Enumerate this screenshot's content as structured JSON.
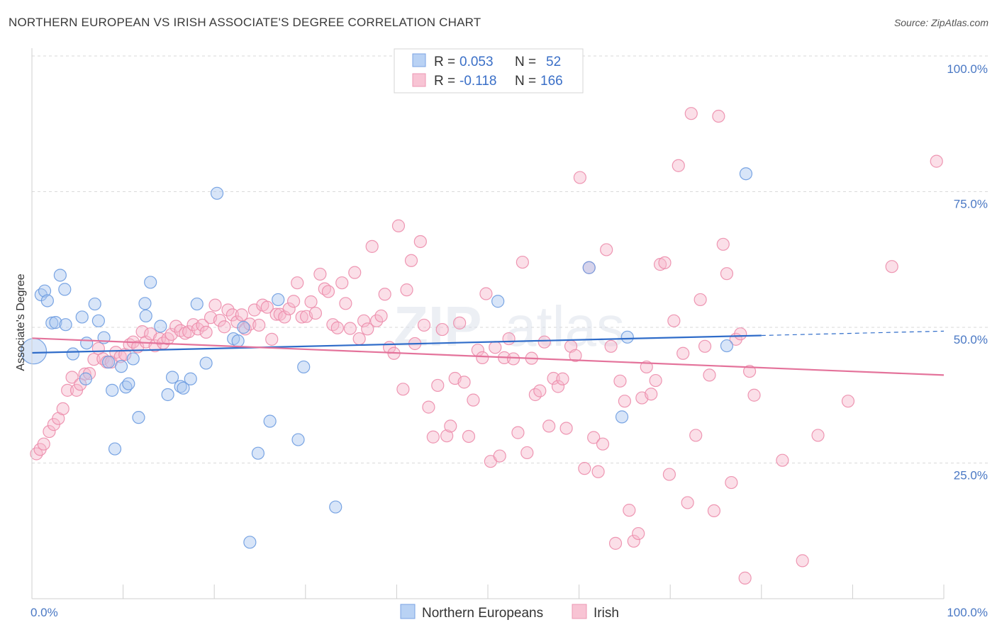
{
  "title": "NORTHERN EUROPEAN VS IRISH ASSOCIATE'S DEGREE CORRELATION CHART",
  "source": "Source: ZipAtlas.com",
  "watermark": {
    "zip": "ZIP",
    "atlas": "atlas"
  },
  "colors": {
    "blue_fill": "#a9c6f0",
    "blue_stroke": "#6b9be0",
    "blue_line": "#2f6cc9",
    "pink_fill": "#f6b7cb",
    "pink_stroke": "#ec8cab",
    "pink_line": "#e4739b",
    "tick_label": "#4a78c4",
    "grid": "#d9d9d9"
  },
  "legend": {
    "rows": [
      {
        "r_label": "R = ",
        "r_value": "0.053",
        "n_label": "N = ",
        "n_value": "52"
      },
      {
        "r_label": "R = ",
        "r_value": "-0.118",
        "n_label": "N = ",
        "n_value": "166"
      }
    ]
  },
  "chart_data": {
    "type": "scatter",
    "title": "NORTHERN EUROPEAN VS IRISH ASSOCIATE'S DEGREE CORRELATION CHART",
    "xlabel": "",
    "ylabel": "Associate's Degree",
    "xlim": [
      0,
      100
    ],
    "ylim": [
      0,
      100
    ],
    "x_tick_labels": [
      "0.0%",
      "100.0%"
    ],
    "y_ticks": [
      25,
      50,
      75,
      100
    ],
    "y_tick_labels": [
      "25.0%",
      "50.0%",
      "75.0%",
      "100.0%"
    ],
    "grid": true,
    "legend_position": "top-center",
    "series": [
      {
        "name": "Northern Europeans",
        "color": "#a9c6f0",
        "trend": {
          "x0": 0,
          "y0": 45.3,
          "x1": 80,
          "y1": 48.5,
          "dashed_to_x": 100,
          "dashed_to_y": 49.3
        },
        "points": [
          [
            0.2,
            45.6
          ],
          [
            1,
            56
          ],
          [
            1.4,
            56.7
          ],
          [
            1.7,
            54.9
          ],
          [
            2.2,
            50.8
          ],
          [
            2.6,
            50.9
          ],
          [
            3.1,
            59.6
          ],
          [
            3.6,
            57
          ],
          [
            3.7,
            50.5
          ],
          [
            4.5,
            45.1
          ],
          [
            5.5,
            51.9
          ],
          [
            5.9,
            40.5
          ],
          [
            6,
            47.1
          ],
          [
            6.9,
            54.3
          ],
          [
            7.3,
            51.2
          ],
          [
            7.9,
            48.1
          ],
          [
            8.4,
            43.6
          ],
          [
            8.8,
            38.4
          ],
          [
            9.1,
            27.6
          ],
          [
            9.8,
            42.8
          ],
          [
            10.3,
            39
          ],
          [
            10.6,
            39.6
          ],
          [
            11.1,
            44.2
          ],
          [
            11.7,
            33.4
          ],
          [
            12.4,
            54.4
          ],
          [
            12.5,
            52.1
          ],
          [
            13,
            58.3
          ],
          [
            14.1,
            50.2
          ],
          [
            14.9,
            37.6
          ],
          [
            15.4,
            40.8
          ],
          [
            16.3,
            39.1
          ],
          [
            16.6,
            38.8
          ],
          [
            17.4,
            40.5
          ],
          [
            18.1,
            54.3
          ],
          [
            19.1,
            43.4
          ],
          [
            20.3,
            74.7
          ],
          [
            22.1,
            47.9
          ],
          [
            22.6,
            47.5
          ],
          [
            23.2,
            50
          ],
          [
            23.9,
            10.4
          ],
          [
            24.8,
            26.8
          ],
          [
            26.1,
            32.7
          ],
          [
            27,
            55.1
          ],
          [
            29.2,
            29.3
          ],
          [
            29.8,
            42.7
          ],
          [
            33.3,
            16.9
          ],
          [
            51.1,
            54.8
          ],
          [
            61.1,
            61
          ],
          [
            64.7,
            33.5
          ],
          [
            65.3,
            48.2
          ],
          [
            78.3,
            78.3
          ],
          [
            76.2,
            46.6
          ]
        ]
      },
      {
        "name": "Irish",
        "color": "#f6b7cb",
        "trend": {
          "x0": 0,
          "y0": 48,
          "x1": 100,
          "y1": 41.2
        },
        "points": [
          [
            0.5,
            26.7
          ],
          [
            0.9,
            27.5
          ],
          [
            1.3,
            28.5
          ],
          [
            1.9,
            30.8
          ],
          [
            2.4,
            32.1
          ],
          [
            2.9,
            33.2
          ],
          [
            3.4,
            35
          ],
          [
            3.9,
            38.4
          ],
          [
            4.4,
            40.8
          ],
          [
            4.9,
            38.4
          ],
          [
            5.3,
            39.5
          ],
          [
            5.8,
            41.4
          ],
          [
            6.3,
            41.5
          ],
          [
            6.8,
            44.1
          ],
          [
            7.3,
            46.1
          ],
          [
            7.8,
            44.2
          ],
          [
            8.2,
            43.6
          ],
          [
            8.7,
            43.6
          ],
          [
            9.2,
            45.4
          ],
          [
            9.7,
            44.6
          ],
          [
            10.2,
            45
          ],
          [
            10.7,
            46.8
          ],
          [
            11.1,
            47.3
          ],
          [
            11.6,
            46.4
          ],
          [
            12.1,
            49.2
          ],
          [
            12.5,
            47.3
          ],
          [
            13,
            48.8
          ],
          [
            13.5,
            46.6
          ],
          [
            14,
            47.9
          ],
          [
            14.4,
            47.1
          ],
          [
            14.9,
            47.9
          ],
          [
            15.3,
            48.7
          ],
          [
            15.8,
            50.2
          ],
          [
            16.3,
            49.4
          ],
          [
            16.8,
            48.9
          ],
          [
            17.2,
            49.2
          ],
          [
            17.7,
            50.5
          ],
          [
            18.2,
            49.7
          ],
          [
            18.7,
            50.4
          ],
          [
            19.1,
            49.1
          ],
          [
            19.6,
            51.8
          ],
          [
            20.1,
            54.1
          ],
          [
            20.6,
            51.3
          ],
          [
            21.1,
            50.1
          ],
          [
            21.5,
            53.2
          ],
          [
            22,
            52.3
          ],
          [
            22.5,
            51
          ],
          [
            23,
            52.3
          ],
          [
            23.4,
            49.7
          ],
          [
            23.9,
            50.6
          ],
          [
            24.4,
            53.2
          ],
          [
            24.9,
            50.4
          ],
          [
            25.3,
            54.1
          ],
          [
            25.8,
            53.7
          ],
          [
            26.3,
            47.8
          ],
          [
            26.8,
            52.4
          ],
          [
            27.2,
            52.4
          ],
          [
            27.7,
            51.9
          ],
          [
            28.2,
            53.4
          ],
          [
            28.7,
            54.8
          ],
          [
            29.1,
            58.2
          ],
          [
            29.6,
            51.9
          ],
          [
            30.1,
            52
          ],
          [
            30.6,
            54.7
          ],
          [
            31.1,
            52.6
          ],
          [
            31.6,
            59.8
          ],
          [
            32.1,
            57.1
          ],
          [
            32.5,
            56.6
          ],
          [
            33,
            50.5
          ],
          [
            33.5,
            49.9
          ],
          [
            34,
            58.2
          ],
          [
            34.4,
            54.4
          ],
          [
            34.9,
            49.8
          ],
          [
            35.4,
            60.1
          ],
          [
            35.9,
            47.9
          ],
          [
            36.4,
            51.2
          ],
          [
            36.8,
            49.7
          ],
          [
            37.3,
            64.9
          ],
          [
            37.8,
            51.2
          ],
          [
            38.3,
            52.1
          ],
          [
            38.7,
            56.1
          ],
          [
            39.2,
            46.3
          ],
          [
            39.7,
            45.2
          ],
          [
            40.2,
            68.7
          ],
          [
            40.7,
            38.6
          ],
          [
            41.1,
            56.9
          ],
          [
            41.6,
            62.3
          ],
          [
            42,
            47
          ],
          [
            42.6,
            65.8
          ],
          [
            43,
            50.4
          ],
          [
            43.5,
            35.3
          ],
          [
            44,
            29.8
          ],
          [
            44.5,
            39.3
          ],
          [
            45,
            49.6
          ],
          [
            45.5,
            30
          ],
          [
            45.9,
            31.8
          ],
          [
            46.4,
            40.6
          ],
          [
            46.9,
            50.8
          ],
          [
            47.4,
            39.9
          ],
          [
            47.9,
            29.9
          ],
          [
            48.4,
            36.6
          ],
          [
            48.9,
            45.8
          ],
          [
            49.4,
            44.4
          ],
          [
            49.8,
            56.2
          ],
          [
            50.3,
            25.3
          ],
          [
            50.8,
            46.3
          ],
          [
            51.3,
            26.3
          ],
          [
            51.8,
            44.4
          ],
          [
            52.3,
            47.9
          ],
          [
            52.8,
            44.2
          ],
          [
            53.3,
            30.6
          ],
          [
            53.8,
            62
          ],
          [
            54.3,
            26.9
          ],
          [
            54.8,
            44.3
          ],
          [
            55.2,
            37.6
          ],
          [
            55.7,
            38.3
          ],
          [
            56.2,
            47.3
          ],
          [
            56.7,
            31.8
          ],
          [
            57.2,
            40.6
          ],
          [
            57.7,
            39.1
          ],
          [
            58.2,
            40.5
          ],
          [
            58.6,
            31.4
          ],
          [
            59.1,
            46.5
          ],
          [
            59.6,
            44.8
          ],
          [
            60.1,
            77.6
          ],
          [
            60.6,
            24
          ],
          [
            61.1,
            61
          ],
          [
            61.6,
            29.7
          ],
          [
            62.1,
            23.4
          ],
          [
            62.6,
            28.5
          ],
          [
            63,
            64.3
          ],
          [
            63.5,
            46.5
          ],
          [
            64,
            10.2
          ],
          [
            64.5,
            40.1
          ],
          [
            65,
            36.4
          ],
          [
            65.5,
            16.3
          ],
          [
            66,
            10.6
          ],
          [
            66.5,
            12
          ],
          [
            66.9,
            37
          ],
          [
            67.4,
            42.7
          ],
          [
            67.9,
            37.7
          ],
          [
            68.4,
            40.2
          ],
          [
            68.9,
            61.6
          ],
          [
            69.4,
            61.9
          ],
          [
            69.9,
            22.9
          ],
          [
            70.4,
            51.2
          ],
          [
            70.9,
            79.8
          ],
          [
            71.4,
            45.2
          ],
          [
            71.9,
            17.7
          ],
          [
            72.3,
            89.4
          ],
          [
            72.8,
            30.1
          ],
          [
            73.3,
            55.1
          ],
          [
            73.8,
            46.5
          ],
          [
            74.3,
            41.2
          ],
          [
            74.8,
            16.2
          ],
          [
            75.3,
            88.9
          ],
          [
            75.8,
            65.3
          ],
          [
            76.2,
            59.9
          ],
          [
            76.7,
            21.4
          ],
          [
            77.2,
            47.8
          ],
          [
            77.7,
            48.8
          ],
          [
            78.2,
            3.8
          ],
          [
            78.7,
            41.9
          ],
          [
            79.2,
            37.5
          ],
          [
            82.3,
            25.5
          ],
          [
            84.5,
            7
          ],
          [
            86.2,
            30.1
          ],
          [
            89.5,
            36.4
          ],
          [
            94.3,
            61.2
          ],
          [
            99.2,
            80.6
          ]
        ]
      }
    ]
  }
}
